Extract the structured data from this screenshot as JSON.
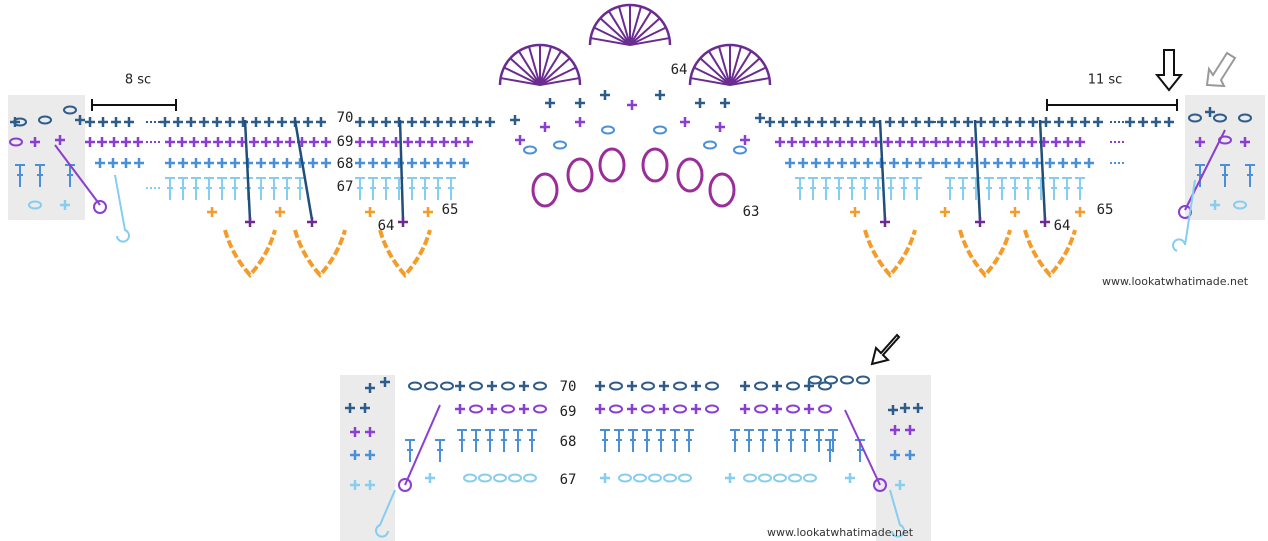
{
  "top_diagram": {
    "left_count": "8 sc",
    "right_count": "11 sc",
    "center_label": "64",
    "row_labels": [
      "70",
      "69",
      "68",
      "67"
    ],
    "left_labels": [
      "64",
      "65"
    ],
    "middle_label": "63",
    "right_labels": [
      "64",
      "65"
    ],
    "watermark": "www.lookatwhatimade.net"
  },
  "bottom_diagram": {
    "row_labels": [
      "70",
      "69",
      "68",
      "67"
    ],
    "watermark": "www.lookatwhatimade.net"
  }
}
